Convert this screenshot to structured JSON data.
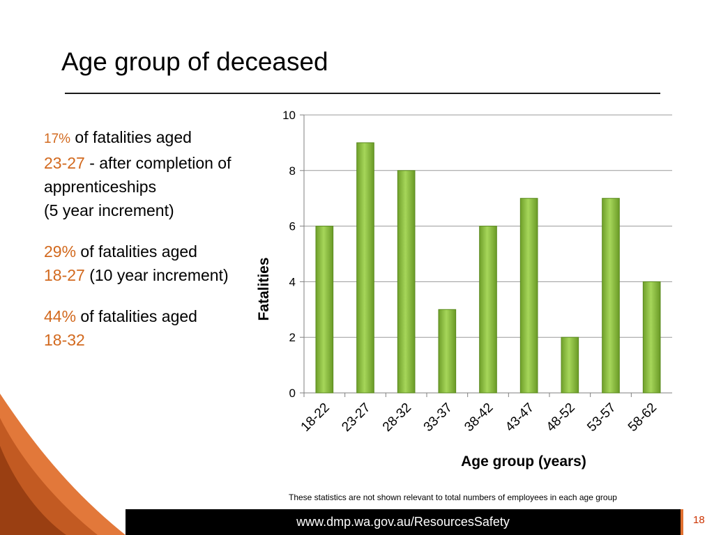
{
  "slide": {
    "title": "Age group of deceased",
    "page_number": "18",
    "footer_url": "www.dmp.wa.gov.au/ResourcesSafety",
    "note": "These statistics are not shown relevant to total numbers of employees in each age group"
  },
  "bullets": [
    {
      "pct": "17%",
      "text1": " of fatalities aged",
      "range": "23-27",
      "text2": " - after completion of apprenticeships",
      "text3": "(5 year increment)"
    },
    {
      "pct": "29%",
      "text1": " of fatalities aged",
      "range": "18-27",
      "text2": " (10 year increment)"
    },
    {
      "pct": "44%",
      "text1": " of fatalities aged",
      "range": "18-32"
    }
  ],
  "colors": {
    "accent": "#d2691e",
    "bar": "#8cc63f",
    "bar_dark": "#5a8a1e",
    "footer": "#000000",
    "footer_accent": "#e07030"
  },
  "chart_data": {
    "type": "bar",
    "categories": [
      "18-22",
      "23-27",
      "28-32",
      "33-37",
      "38-42",
      "43-47",
      "48-52",
      "53-57",
      "58-62"
    ],
    "values": [
      6,
      9,
      8,
      3,
      6,
      7,
      2,
      7,
      4
    ],
    "xlabel": "Age group (years)",
    "ylabel": "Fatalities",
    "ylim": [
      0,
      10
    ],
    "yticks": [
      0,
      2,
      4,
      6,
      8,
      10
    ],
    "grid": true,
    "legend": "none"
  }
}
